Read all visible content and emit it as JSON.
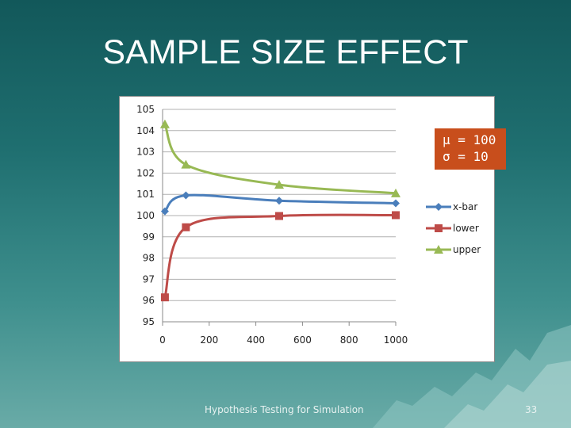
{
  "slide": {
    "title": "SAMPLE SIZE EFFECT",
    "footer": "Hypothesis Testing for Simulation",
    "page_number": "33",
    "params": [
      "μ = 100",
      "σ = 10"
    ]
  },
  "colors": {
    "xbar": "#4a7ebb",
    "lower": "#be4b48",
    "upper": "#98b954",
    "param_box": "#c84e1c"
  },
  "chart_data": {
    "type": "line",
    "x_ticks": [
      0,
      200,
      400,
      600,
      800,
      1000
    ],
    "y_ticks": [
      95,
      96,
      97,
      98,
      99,
      100,
      101,
      102,
      103,
      104,
      105
    ],
    "xlim": [
      0,
      1000
    ],
    "ylim": [
      95,
      105
    ],
    "grid": "horizontal",
    "legend": "right",
    "series": [
      {
        "name": "x-bar",
        "marker": "diamond",
        "color": "#4a7ebb",
        "x": [
          10,
          100,
          500,
          1000
        ],
        "y": [
          100.2,
          100.95,
          100.7,
          100.58
        ]
      },
      {
        "name": "lower",
        "marker": "square",
        "color": "#be4b48",
        "x": [
          10,
          100,
          500,
          1000
        ],
        "y": [
          96.15,
          99.45,
          99.98,
          100.02
        ]
      },
      {
        "name": "upper",
        "marker": "triangle",
        "color": "#98b954",
        "x": [
          10,
          100,
          500,
          1000
        ],
        "y": [
          104.3,
          102.4,
          101.45,
          101.05
        ]
      }
    ]
  }
}
